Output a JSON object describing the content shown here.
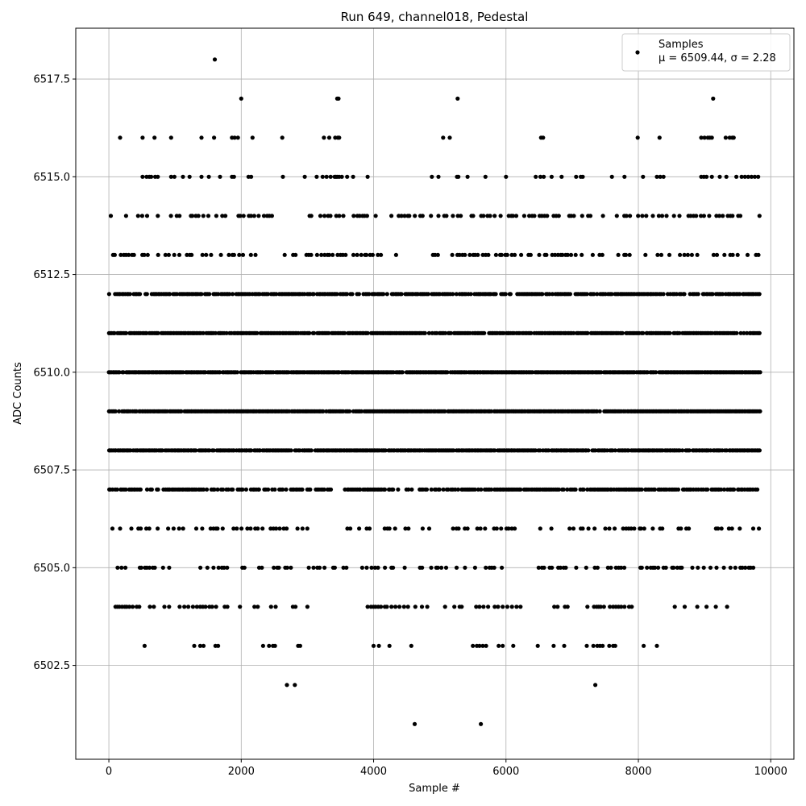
{
  "chart_data": {
    "type": "scatter",
    "title": "Run 649, channel018, Pedestal",
    "xlabel": "Sample #",
    "ylabel": "ADC Counts",
    "xlim": [
      -500,
      10350
    ],
    "ylim": [
      6500.1,
      6518.8
    ],
    "xticks": [
      0,
      2000,
      4000,
      6000,
      8000,
      10000
    ],
    "xtick_labels": [
      "0",
      "2000",
      "4000",
      "6000",
      "8000",
      "10000"
    ],
    "yticks": [
      6502.5,
      6505.0,
      6507.5,
      6510.0,
      6512.5,
      6515.0,
      6517.5
    ],
    "ytick_labels": [
      "6502.5",
      "6505.0",
      "6507.5",
      "6510.0",
      "6512.5",
      "6515.0",
      "6517.5"
    ],
    "grid": true,
    "legend_position": "top-right",
    "marker_color": "#000000",
    "series": [
      {
        "name": "Samples",
        "label_line2": "μ = 6509.44, σ = 2.28",
        "mu": 6509.44,
        "sigma": 2.28,
        "x_range": [
          0,
          9840
        ],
        "levels": [
          {
            "y": 6518,
            "x": [
              1600
            ]
          },
          {
            "y": 6517,
            "x": [
              2000,
              3450,
              3470,
              5270,
              9130
            ]
          },
          {
            "y": 6516,
            "x": [
              170,
              510,
              690,
              940,
              1400,
              1590,
              1860,
              1900,
              1950,
              2170,
              2620,
              3250,
              3330,
              3420,
              3460,
              3480,
              5050,
              5150,
              6530,
              6560,
              7990,
              8320,
              8950,
              9000,
              9050,
              9080,
              9110,
              9320,
              9380,
              9420,
              9440
            ]
          },
          {
            "y": 6515,
            "x": [
              510,
              570,
              610,
              640,
              700,
              740,
              940,
              990,
              1120,
              1220,
              1400,
              1510,
              1680,
              1860,
              1890,
              2110,
              2150,
              2630,
              2960,
              3140,
              3230,
              3290,
              3350,
              3410,
              3430,
              3450,
              3480,
              3520,
              3600,
              3690,
              3910,
              4880,
              4980,
              5260,
              5280,
              5420,
              5690,
              6000,
              6450,
              6520,
              6570,
              6690,
              6840,
              7060,
              7130,
              7160,
              7600,
              7790,
              8070,
              8280,
              8330,
              8380,
              8950,
              8990,
              9030,
              9110,
              9230,
              9330,
              9480,
              9560,
              9610,
              9660,
              9710,
              9760,
              9810
            ]
          },
          {
            "y": 6514,
            "x_start": 30,
            "x_end": 9830,
            "step": 40,
            "keep": 0.5,
            "gaps": [
              [
                2570,
                2960
              ],
              [
                4040,
                4240
              ]
            ]
          },
          {
            "y": 6513,
            "x_start": 20,
            "x_end": 9830,
            "step": 40,
            "keep": 0.5,
            "gaps": [
              [
                2240,
                2400
              ],
              [
                4350,
                4850
              ]
            ]
          },
          {
            "y": 6512,
            "x_start": 0,
            "x_end": 9840,
            "step": 25,
            "keep": 0.8,
            "gaps": []
          },
          {
            "y": 6511,
            "x_start": 0,
            "x_end": 9840,
            "step": 22,
            "keep": 0.9,
            "gaps": []
          },
          {
            "y": 6510,
            "x_start": 0,
            "x_end": 9840,
            "step": 20,
            "keep": 0.95,
            "gaps": []
          },
          {
            "y": 6509,
            "x_start": 0,
            "x_end": 9840,
            "step": 20,
            "keep": 0.95,
            "gaps": []
          },
          {
            "y": 6508,
            "x_start": 0,
            "x_end": 9840,
            "step": 22,
            "keep": 0.9,
            "gaps": []
          },
          {
            "y": 6507,
            "x_start": 0,
            "x_end": 9840,
            "step": 25,
            "keep": 0.8,
            "gaps": [
              [
                3370,
                3550
              ]
            ]
          },
          {
            "y": 6506,
            "x_start": 10,
            "x_end": 9830,
            "step": 40,
            "keep": 0.45,
            "gaps": [
              [
                3120,
                3600
              ],
              [
                4900,
                5150
              ]
            ]
          },
          {
            "y": 6505,
            "x_start": 20,
            "x_end": 9840,
            "step": 40,
            "keep": 0.45,
            "gaps": [
              [
                2070,
                2200
              ],
              [
                3600,
                3800
              ],
              [
                7800,
                7950
              ]
            ]
          },
          {
            "y": 6504,
            "x": [
              100,
              130,
              160,
              200,
              240,
              270,
              310,
              360,
              420,
              460,
              620,
              680,
              840,
              910,
              1070,
              1140,
              1200,
              1270,
              1330,
              1380,
              1420,
              1460,
              1520,
              1560,
              1620,
              1750,
              1790,
              1980,
              2200,
              2250,
              2450,
              2520,
              2780,
              2820,
              3000,
              3910,
              3960,
              4000,
              4030,
              4070,
              4110,
              4170,
              4200,
              4270,
              4330,
              4390,
              4460,
              4520,
              4630,
              4730,
              4810,
              5080,
              5220,
              5300,
              5330,
              5550,
              5600,
              5660,
              5730,
              5830,
              5880,
              5950,
              6020,
              6090,
              6160,
              6220,
              6730,
              6780,
              6890,
              6930,
              7230,
              7330,
              7370,
              7400,
              7430,
              7480,
              7570,
              7620,
              7660,
              7700,
              7740,
              7790,
              7860,
              7900,
              8550,
              8700,
              8890,
              9030,
              9170,
              9340
            ]
          },
          {
            "y": 6503,
            "x": [
              540,
              1290,
              1380,
              1430,
              1610,
              1650,
              2330,
              2420,
              2480,
              2510,
              2860,
              2890,
              4000,
              4080,
              4240,
              4570,
              5500,
              5560,
              5600,
              5650,
              5700,
              5890,
              5950,
              6110,
              6480,
              6720,
              6880,
              7220,
              7320,
              7380,
              7420,
              7460,
              7560,
              7620,
              7650,
              8080,
              8280
            ]
          },
          {
            "y": 6502,
            "x": [
              2690,
              2810,
              7350
            ]
          },
          {
            "y": 6501,
            "x": [
              4620,
              5620
            ]
          }
        ]
      }
    ]
  }
}
